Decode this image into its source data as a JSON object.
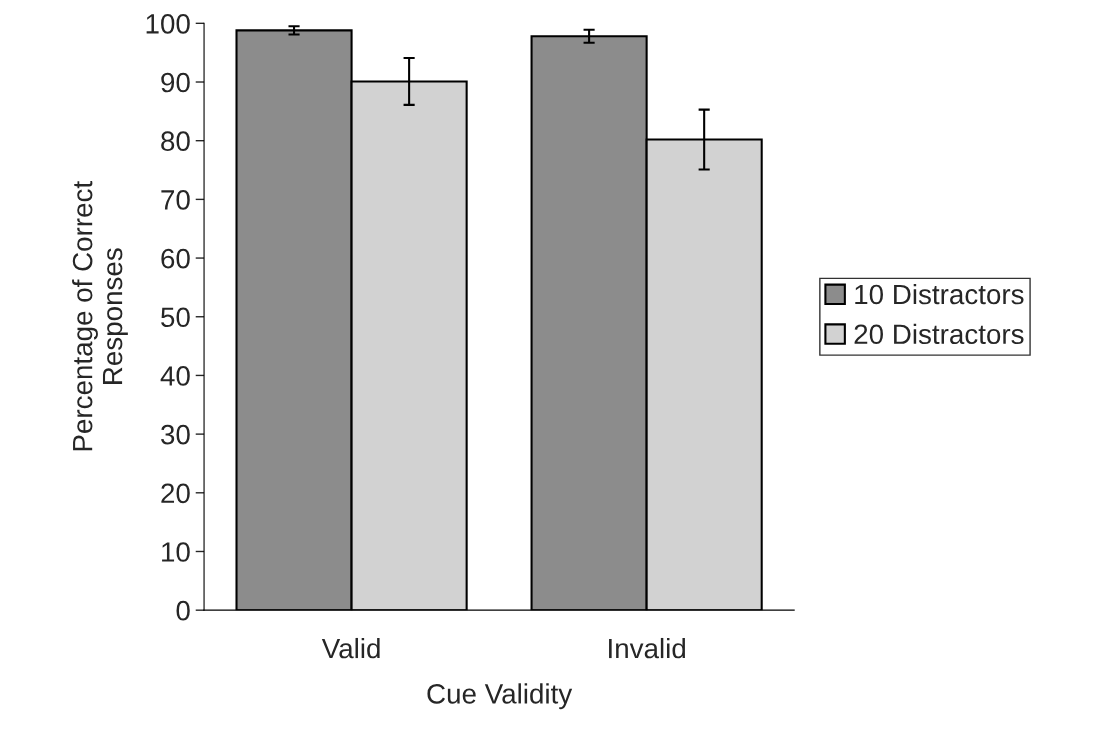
{
  "chart_data": {
    "type": "bar",
    "xlabel": "Cue Validity",
    "ylabel": "Percentage of Correct\nResponses",
    "categories": [
      "Valid",
      "Invalid"
    ],
    "series": [
      {
        "name": "10 Distractors",
        "color": "#8c8c8c",
        "values": [
          98.8,
          97.8
        ],
        "errors": [
          0.7,
          1.1
        ]
      },
      {
        "name": "20 Distractors",
        "color": "#d2d2d2",
        "values": [
          90.1,
          80.2
        ],
        "errors": [
          4,
          5.1
        ]
      }
    ],
    "ylim": [
      0,
      100
    ],
    "yticks": [
      0,
      10,
      20,
      30,
      40,
      50,
      60,
      70,
      80,
      90,
      100
    ],
    "grid": false,
    "legend": "right"
  }
}
